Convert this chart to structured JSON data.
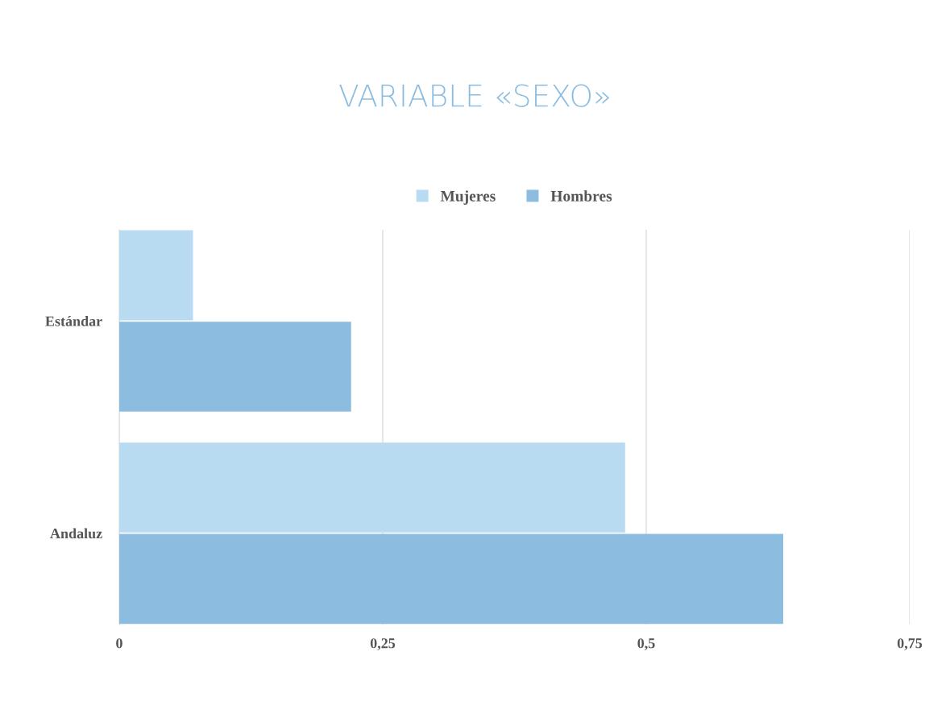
{
  "chart_data": {
    "type": "bar",
    "orientation": "horizontal",
    "title": "VARIABLE «SEXO»",
    "categories": [
      "Estándar",
      "Andaluz"
    ],
    "series": [
      {
        "name": "Mujeres",
        "color": "#b8dbf2",
        "values": [
          0.07,
          0.48
        ]
      },
      {
        "name": "Hombres",
        "color": "#8cbde1",
        "values": [
          0.22,
          0.63
        ]
      }
    ],
    "xlim": [
      0,
      0.75
    ],
    "xticks": [
      0,
      {
        "value": 0.25,
        "label": "0,25"
      },
      {
        "value": 0.5,
        "label": "0,5"
      },
      {
        "value": 0.75,
        "label": "0,75"
      }
    ],
    "grid": "x",
    "legend": "top"
  }
}
